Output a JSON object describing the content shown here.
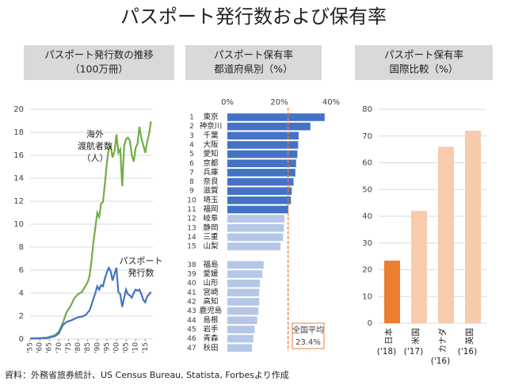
{
  "title": "パスポート発行数および保有率",
  "source": "資料：外務省旅券統計、US Census Bureau, Statista, Forbesより作成",
  "chart_data": [
    {
      "type": "line",
      "title": [
        "パスポート発行数の推移",
        "（100万冊）"
      ],
      "x": [
        1955,
        1960,
        1964,
        1968,
        1970,
        1972,
        1974,
        1976,
        1978,
        1980,
        1982,
        1984,
        1985,
        1986,
        1987,
        1988,
        1989,
        1990,
        1991,
        1992,
        1993,
        1994,
        1995,
        1996,
        1997,
        1998,
        1999,
        2000,
        2001,
        2002,
        2003,
        2004,
        2005,
        2006,
        2007,
        2008,
        2009,
        2010,
        2011,
        2012,
        2013,
        2014,
        2015,
        2016,
        2017,
        2018
      ],
      "series": [
        {
          "name": [
            "海外",
            "渡航者数",
            "（人）"
          ],
          "color": "#70ad47",
          "values": [
            0.05,
            0.08,
            0.13,
            0.34,
            0.66,
            1.39,
            2.34,
            2.85,
            3.53,
            3.91,
            4.09,
            4.66,
            4.95,
            5.52,
            6.83,
            8.43,
            9.66,
            10.99,
            10.63,
            11.79,
            11.93,
            13.58,
            15.3,
            16.69,
            16.8,
            15.81,
            16.36,
            17.82,
            16.22,
            16.52,
            13.3,
            16.83,
            17.4,
            17.53,
            17.29,
            15.99,
            15.45,
            16.64,
            16.99,
            18.49,
            17.47,
            16.9,
            16.21,
            17.12,
            17.89,
            18.95
          ]
        },
        {
          "name": [
            "パスポート",
            "発行数"
          ],
          "color": "#4472c4",
          "values": [
            0.05,
            0.06,
            0.1,
            0.25,
            0.5,
            1.2,
            1.5,
            1.6,
            1.75,
            1.9,
            1.95,
            2.1,
            2.3,
            2.5,
            3.0,
            3.5,
            4.0,
            4.6,
            4.3,
            4.7,
            4.6,
            5.3,
            5.8,
            6.2,
            5.9,
            5.1,
            5.7,
            6.2,
            4.1,
            3.9,
            2.8,
            3.6,
            4.3,
            3.9,
            3.8,
            3.6,
            4.0,
            4.3,
            4.2,
            4.3,
            3.9,
            3.4,
            3.2,
            3.7,
            3.9,
            4.1
          ]
        }
      ],
      "xlim": [
        1955,
        2019
      ],
      "xticks": [
        {
          "value": 1955,
          "label": "'55"
        },
        {
          "value": 1960,
          "label": "'60"
        },
        {
          "value": 1965,
          "label": "'65"
        },
        {
          "value": 1970,
          "label": "'70"
        },
        {
          "value": 1975,
          "label": "'75"
        },
        {
          "value": 1980,
          "label": "'80"
        },
        {
          "value": 1985,
          "label": "'85"
        },
        {
          "value": 1990,
          "label": "'90"
        },
        {
          "value": 1995,
          "label": "'95"
        },
        {
          "value": 2000,
          "label": "'00"
        },
        {
          "value": 2005,
          "label": "'05"
        },
        {
          "value": 2010,
          "label": "'10"
        },
        {
          "value": 2015,
          "label": "'15"
        }
      ],
      "ylim": [
        0,
        20
      ],
      "yticks": [
        0,
        2,
        4,
        6,
        8,
        10,
        12,
        14,
        16,
        18,
        20
      ],
      "grid": true
    },
    {
      "type": "bar",
      "orientation": "horizontal",
      "title": [
        "パスポート保有率",
        "都道府県別（%）"
      ],
      "ranks": [
        1,
        2,
        3,
        4,
        5,
        6,
        7,
        8,
        9,
        10,
        11,
        12,
        13,
        14,
        15,
        38,
        39,
        40,
        41,
        42,
        43,
        44,
        45,
        46,
        47
      ],
      "categories": [
        "東京",
        "神奈川",
        "千葉",
        "大阪",
        "愛知",
        "京都",
        "兵庫",
        "奈良",
        "滋賀",
        "埼玉",
        "福岡",
        "岐阜",
        "静岡",
        "三重",
        "山梨",
        "福島",
        "愛媛",
        "山形",
        "宮崎",
        "高知",
        "鹿児島",
        "島根",
        "岩手",
        "青森",
        "秋田"
      ],
      "values": [
        37.5,
        32,
        27.5,
        27.3,
        27,
        26.5,
        26.2,
        25.5,
        24.8,
        24.5,
        23.5,
        22,
        21.8,
        21.5,
        20.5,
        14,
        13.5,
        12.5,
        12.3,
        12.3,
        12,
        11.5,
        10.5,
        10,
        9.5
      ],
      "colors": [
        "#4472c4",
        "#4472c4",
        "#4472c4",
        "#4472c4",
        "#4472c4",
        "#4472c4",
        "#4472c4",
        "#4472c4",
        "#4472c4",
        "#4472c4",
        "#4472c4",
        "#b4c7e7",
        "#b4c7e7",
        "#b4c7e7",
        "#b4c7e7",
        "#b4c7e7",
        "#b4c7e7",
        "#b4c7e7",
        "#b4c7e7",
        "#b4c7e7",
        "#b4c7e7",
        "#b4c7e7",
        "#b4c7e7",
        "#b4c7e7",
        "#b4c7e7"
      ],
      "xlim": [
        0,
        40
      ],
      "xticks": [
        {
          "value": 0,
          "label": "0%"
        },
        {
          "value": 20,
          "label": "20%"
        },
        {
          "value": 40,
          "label": "40%"
        }
      ],
      "reference": {
        "label": "全国平均",
        "value": 23.4,
        "value_label": "23.4%",
        "color": "#ed7d31"
      }
    },
    {
      "type": "bar",
      "title": [
        "パスポート保有率",
        "国際比較（%）"
      ],
      "categories": [
        "日本",
        "米国",
        "カナダ",
        "英国"
      ],
      "years": [
        "('18)",
        "('17)",
        "('16)",
        "('16)"
      ],
      "values": [
        23.4,
        42,
        66,
        72
      ],
      "colors": [
        "#ed7d31",
        "#f8cbad",
        "#f8cbad",
        "#f8cbad"
      ],
      "ylim": [
        0,
        80
      ],
      "yticks": [
        0,
        10,
        20,
        30,
        40,
        50,
        60,
        70,
        80
      ],
      "grid": true
    }
  ]
}
